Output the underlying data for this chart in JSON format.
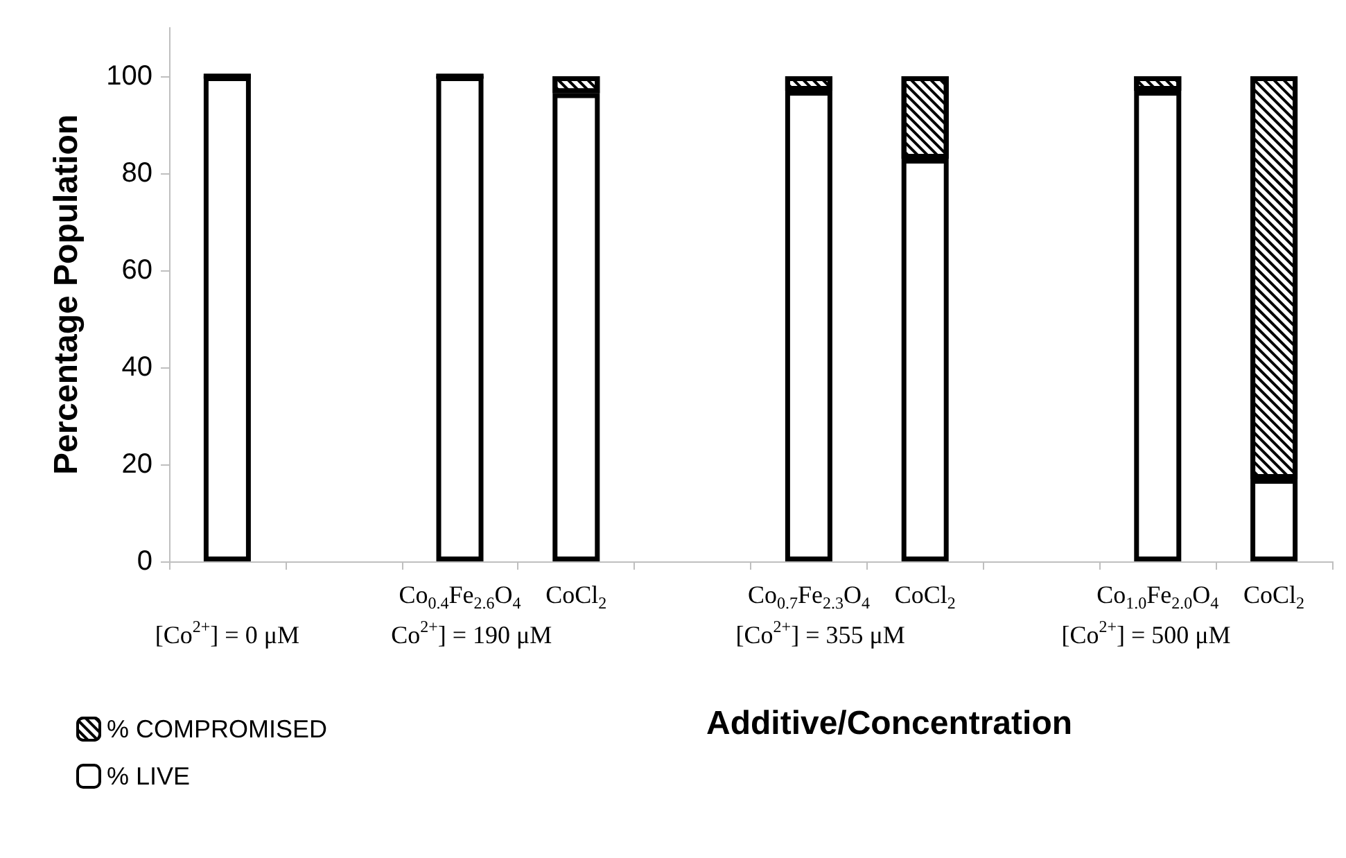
{
  "chart_data": {
    "type": "bar",
    "stacked": true,
    "xlabel": "Additive/Concentration",
    "ylabel": "Percentage Population",
    "categories": [
      null,
      null,
      "Co$_{0.4}$Fe$_{2.6}$O$_{4}$",
      "CoCl$_{2}$",
      null,
      "Co$_{0.7}$Fe$_{2.3}$O$_{4}$",
      "CoCl$_{2}$",
      null,
      "Co$_{1.0}$Fe$_{2.0}$O$_{4}$",
      "CoCl$_{2}$"
    ],
    "series": [
      {
        "name": "% LIVE",
        "color": "#ffffff",
        "values": [
          100,
          null,
          100,
          96.5,
          null,
          97,
          83,
          null,
          97,
          17
        ]
      },
      {
        "name": "% COMPROMISED",
        "color": "#000000",
        "values": [
          0,
          null,
          0,
          3.5,
          null,
          3,
          17,
          null,
          3,
          83
        ]
      }
    ],
    "ylim": [
      0,
      110
    ],
    "yticks": [
      0,
      20,
      40,
      60,
      80,
      100
    ],
    "grid": false,
    "legend": "bottom left",
    "annotations": [
      "[Co$^{2+}$] = 0 μM",
      "Co$^{2+}$] = 190 μM",
      "[Co$^{2+}$] = 355 μM",
      "[Co$^{2+}$] = 500 μM"
    ]
  }
}
